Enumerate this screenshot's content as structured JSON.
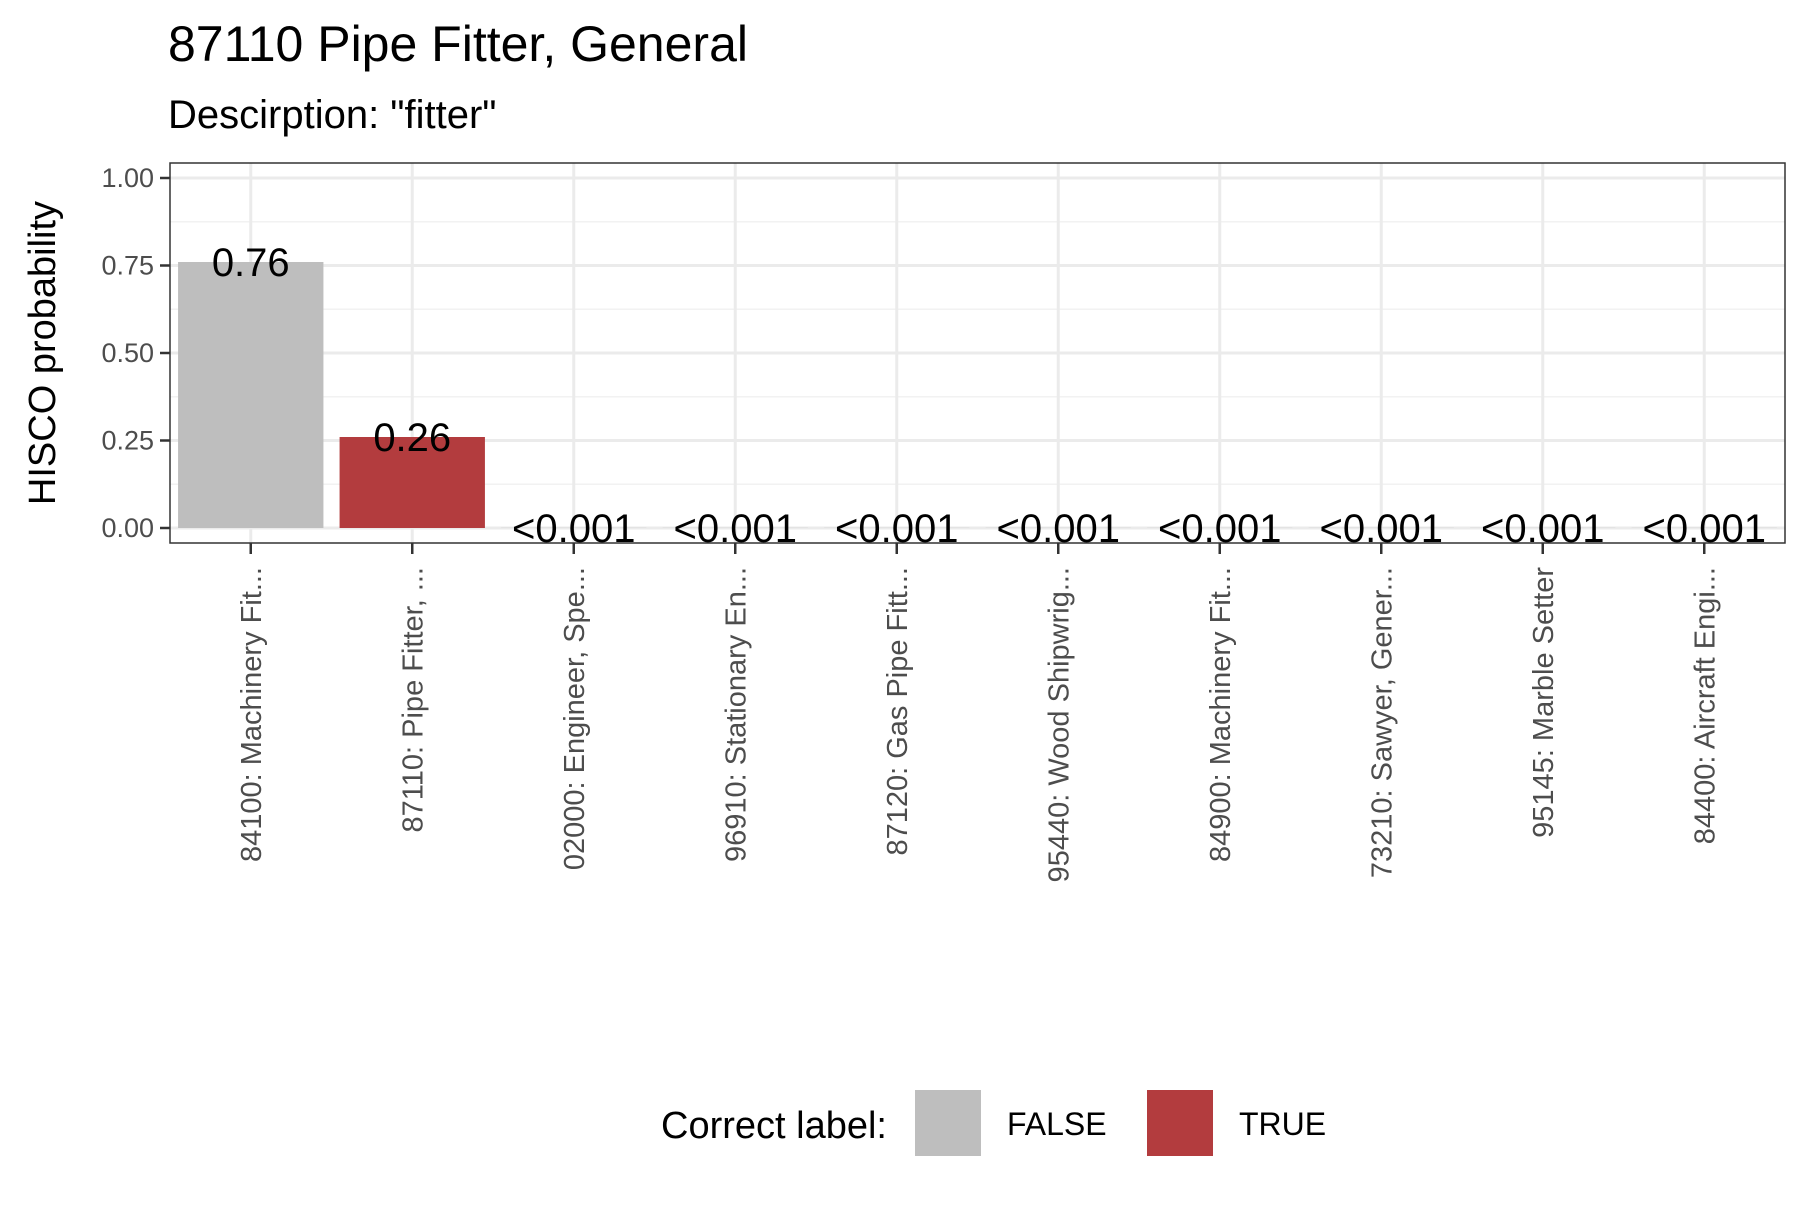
{
  "chart_data": {
    "type": "bar",
    "title": "87110 Pipe Fitter, General",
    "subtitle": "Descirption: \"fitter\"",
    "xlabel": "",
    "ylabel": "HISCO probability",
    "ylim": [
      0,
      1.0
    ],
    "yticks": [
      0.0,
      0.25,
      0.5,
      0.75,
      1.0
    ],
    "ytick_labels": [
      "0.00",
      "0.25",
      "0.50",
      "0.75",
      "1.00"
    ],
    "grid": true,
    "legend_position": "bottom",
    "legend_title": "Correct label:",
    "legend": [
      {
        "label": "FALSE",
        "color": "#BEBEBE"
      },
      {
        "label": "TRUE",
        "color": "#B33C3E"
      }
    ],
    "categories": [
      "84100: Machinery Fit...",
      "87110: Pipe Fitter, ...",
      "02000: Engineer, Spe...",
      "96910: Stationary En...",
      "87120: Gas Pipe Fitt...",
      "95440: Wood Shipwrig...",
      "84900: Machinery Fit...",
      "73210: Sawyer, Gener...",
      "95145: Marble Setter",
      "84400: Aircraft Engi..."
    ],
    "values": [
      0.76,
      0.26,
      0.0005,
      0.0005,
      0.0005,
      0.0005,
      0.0005,
      0.0005,
      0.0005,
      0.0005
    ],
    "data_labels": [
      "0.76",
      "0.26",
      "<0.001",
      "<0.001",
      "<0.001",
      "<0.001",
      "<0.001",
      "<0.001",
      "<0.001",
      "<0.001"
    ],
    "correct": [
      false,
      true,
      false,
      false,
      false,
      false,
      false,
      false,
      false,
      false
    ]
  }
}
